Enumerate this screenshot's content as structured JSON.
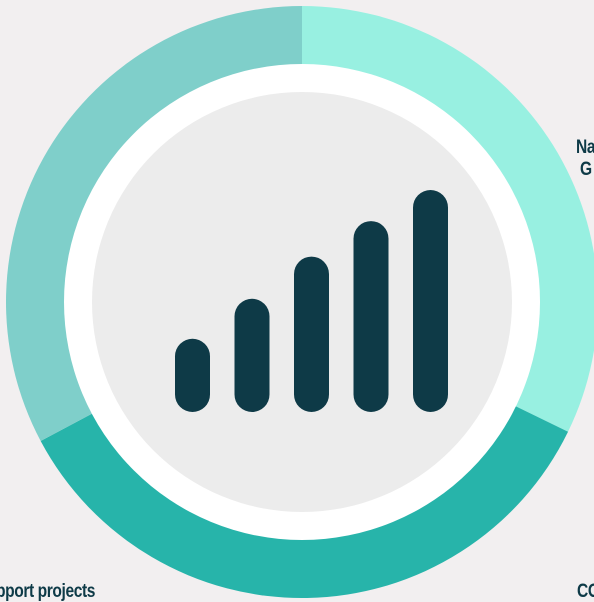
{
  "donut": {
    "segments": [
      {
        "name": "light-mint",
        "color": "#98f0e1",
        "start_deg": -90,
        "end_deg": 26
      },
      {
        "name": "teal",
        "color": "#27b4aa",
        "start_deg": 26,
        "end_deg": 152
      },
      {
        "name": "muted-teal",
        "color": "#7fcfca",
        "start_deg": 152,
        "end_deg": 270
      }
    ],
    "inner_ring_color": "#ffffff",
    "center_color": "#ececec"
  },
  "signal_icon": {
    "color": "#0e3a47",
    "bar_levels": [
      0.33,
      0.51,
      0.7,
      0.86,
      1.0
    ]
  },
  "labels": {
    "top_right_line1": "Na",
    "top_right_line2": "G",
    "bottom_left": "pport projects",
    "bottom_right": "CO"
  }
}
